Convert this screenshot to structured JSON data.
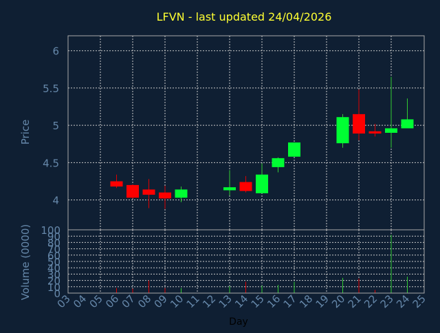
{
  "colors": {
    "background": "#0f1f33",
    "title": "#ffff33",
    "axis_text": "#6688aa",
    "frame": "#aaaaaa",
    "grid": "#cccccc",
    "up": "#00ff33",
    "down": "#ff0000",
    "wick_up": "#33cc33",
    "wick_down": "#dd0000"
  },
  "chart_data": [
    {
      "type": "candlestick",
      "title": "LFVN - last updated 24/04/2026",
      "ylabel": "Price",
      "ylim": [
        3.6,
        6.2
      ],
      "yticks": [
        4,
        4.5,
        5,
        5.5,
        6
      ],
      "ytick_labels": [
        "4",
        "4.5",
        "5",
        "5.5",
        "6"
      ],
      "grid": true,
      "x_days": [
        "03",
        "04",
        "05",
        "06",
        "07",
        "08",
        "09",
        "10",
        "11",
        "12",
        "13",
        "14",
        "15",
        "16",
        "17",
        "18",
        "19",
        "20",
        "21",
        "22",
        "23",
        "24",
        "25"
      ],
      "candles": [
        {
          "day": "06",
          "open": 4.25,
          "high": 4.34,
          "low": 4.16,
          "close": 4.18
        },
        {
          "day": "07",
          "open": 4.2,
          "high": 4.21,
          "low": 4.02,
          "close": 4.03
        },
        {
          "day": "08",
          "open": 4.14,
          "high": 4.28,
          "low": 3.89,
          "close": 4.07
        },
        {
          "day": "09",
          "open": 4.1,
          "high": 4.19,
          "low": 3.88,
          "close": 4.02
        },
        {
          "day": "10",
          "open": 4.03,
          "high": 4.18,
          "low": 3.97,
          "close": 4.14
        },
        {
          "day": "13",
          "open": 4.13,
          "high": 4.4,
          "low": 4.06,
          "close": 4.17
        },
        {
          "day": "14",
          "open": 4.24,
          "high": 4.32,
          "low": 4.1,
          "close": 4.12
        },
        {
          "day": "15",
          "open": 4.09,
          "high": 4.49,
          "low": 4.09,
          "close": 4.34
        },
        {
          "day": "16",
          "open": 4.44,
          "high": 4.57,
          "low": 4.37,
          "close": 4.56
        },
        {
          "day": "17",
          "open": 4.58,
          "high": 4.77,
          "low": 4.58,
          "close": 4.77
        },
        {
          "day": "20",
          "open": 4.76,
          "high": 5.15,
          "low": 4.7,
          "close": 5.11
        },
        {
          "day": "21",
          "open": 5.15,
          "high": 5.48,
          "low": 4.8,
          "close": 4.89
        },
        {
          "day": "22",
          "open": 4.92,
          "high": 5.02,
          "low": 4.85,
          "close": 4.89
        },
        {
          "day": "23",
          "open": 4.9,
          "high": 5.65,
          "low": 4.7,
          "close": 4.96
        },
        {
          "day": "24",
          "open": 4.96,
          "high": 5.36,
          "low": 4.96,
          "close": 5.08
        }
      ]
    },
    {
      "type": "bar",
      "ylabel": "Volume (0000)",
      "xlabel": "Day",
      "ylim": [
        0,
        100
      ],
      "yticks": [
        0,
        10,
        20,
        30,
        40,
        50,
        60,
        70,
        80,
        90,
        100
      ],
      "ytick_labels": [
        "0",
        "10",
        "20",
        "30",
        "40",
        "50",
        "60",
        "70",
        "80",
        "90",
        "100"
      ],
      "grid": true,
      "bars": [
        {
          "day": "06",
          "value": 8,
          "direction": "down"
        },
        {
          "day": "07",
          "value": 7,
          "direction": "down"
        },
        {
          "day": "08",
          "value": 20,
          "direction": "down"
        },
        {
          "day": "09",
          "value": 8,
          "direction": "down"
        },
        {
          "day": "10",
          "value": 8,
          "direction": "up"
        },
        {
          "day": "13",
          "value": 11,
          "direction": "up"
        },
        {
          "day": "14",
          "value": 18,
          "direction": "down"
        },
        {
          "day": "15",
          "value": 12,
          "direction": "up"
        },
        {
          "day": "16",
          "value": 13,
          "direction": "up"
        },
        {
          "day": "17",
          "value": 18,
          "direction": "up"
        },
        {
          "day": "20",
          "value": 24,
          "direction": "up"
        },
        {
          "day": "21",
          "value": 23,
          "direction": "down"
        },
        {
          "day": "22",
          "value": 5,
          "direction": "down"
        },
        {
          "day": "23",
          "value": 92,
          "direction": "up"
        },
        {
          "day": "24",
          "value": 26,
          "direction": "up"
        }
      ]
    }
  ]
}
